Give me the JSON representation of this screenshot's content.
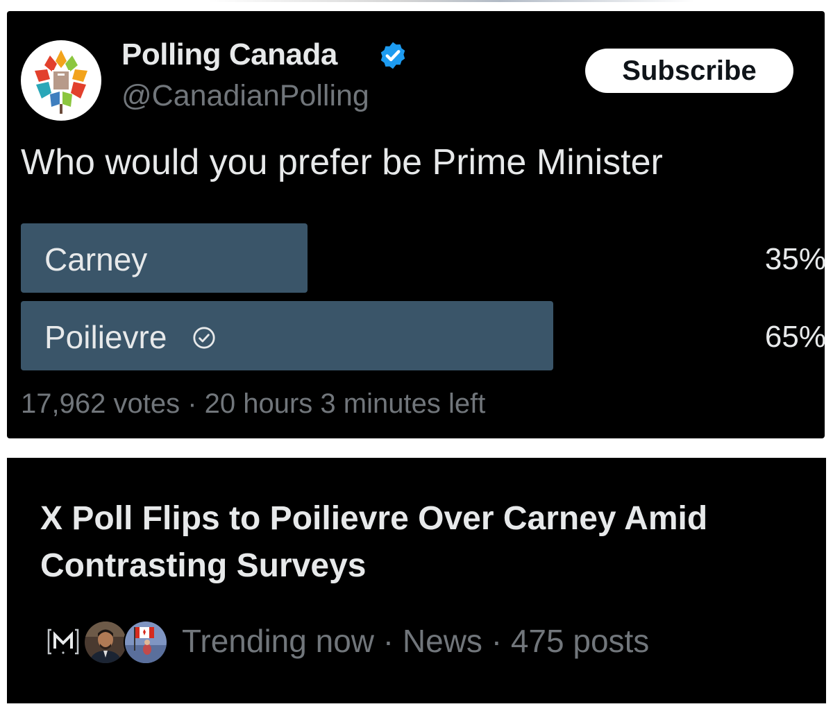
{
  "post": {
    "display_name": "Polling Canada",
    "verified_badge_icon": "verified-badge-icon",
    "handle": "@CanadianPolling",
    "subscribe_label": "Subscribe",
    "question": "Who would you prefer be Prime Minister",
    "poll": {
      "options": [
        {
          "label": "Carney",
          "percent_text": "35%",
          "percent": 35,
          "voted": false
        },
        {
          "label": "Poilievre",
          "percent_text": "65%",
          "percent": 65,
          "voted": true
        }
      ],
      "bar_color": "#3a5569",
      "votes": "17,962 votes",
      "separator": "·",
      "time_left": "20 hours 3 minutes left"
    }
  },
  "trending": {
    "headline": "X Poll Flips to Poilievre Over Carney Amid Contrasting Surveys",
    "source_icon": "m-logo-icon",
    "status": "Trending now",
    "category": "News",
    "posts": "475 posts",
    "separator": "·"
  },
  "colors": {
    "background": "#000000",
    "primary_text": "#e7e9ea",
    "secondary_text": "#71767b",
    "verified_blue": "#1d9bf0"
  }
}
